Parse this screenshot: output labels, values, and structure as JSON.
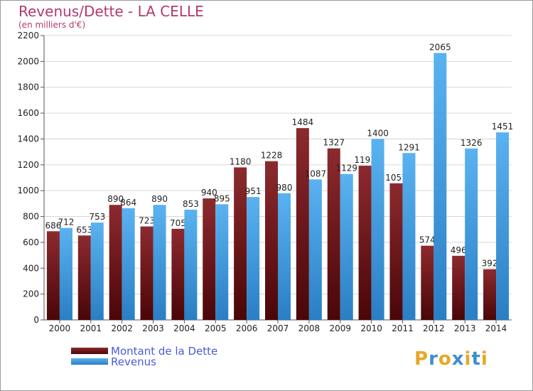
{
  "title": "Revenus/Dette - LA CELLE",
  "subtitle": "(en milliers d'€)",
  "colors": {
    "dette": "#7a1a1e",
    "revenus": "#4aa3e6",
    "title": "#b4386c",
    "legend_text": "#4b5bd6"
  },
  "logo": {
    "text": "Proxiti",
    "icon": "proxiti-logo"
  },
  "chart_data": {
    "type": "bar",
    "categories": [
      "2000",
      "2001",
      "2002",
      "2003",
      "2004",
      "2005",
      "2006",
      "2007",
      "2008",
      "2009",
      "2010",
      "2011",
      "2012",
      "2013",
      "2014"
    ],
    "series": [
      {
        "name": "Montant de la Dette",
        "values": [
          686,
          653,
          890,
          723,
          705,
          940,
          1180,
          1228,
          1484,
          1327,
          1193,
          1057,
          574,
          496,
          392
        ]
      },
      {
        "name": "Revenus",
        "values": [
          712,
          753,
          864,
          890,
          853,
          895,
          951,
          980,
          1087,
          1129,
          1400,
          1291,
          2065,
          1326,
          1451
        ]
      }
    ],
    "data_labels": {
      "Montant de la Dette": [
        "686",
        "653",
        "890",
        "723",
        "705",
        "940",
        "1180",
        "1228",
        "1484",
        "1327",
        "1193",
        "1057",
        "574",
        "496",
        "392"
      ],
      "Revenus": [
        "712",
        "753",
        "864",
        "890",
        "853",
        "895",
        "951",
        "980",
        "1087",
        "1129",
        "1400",
        "1291",
        "2065",
        "1326",
        "1451"
      ]
    },
    "yticks": [
      0,
      200,
      400,
      600,
      800,
      1000,
      1200,
      1400,
      1600,
      1800,
      2000,
      2200
    ],
    "ylim": [
      0,
      2200
    ],
    "grid": true,
    "legend_position": "bottom-left",
    "xlabel": "",
    "ylabel": ""
  }
}
